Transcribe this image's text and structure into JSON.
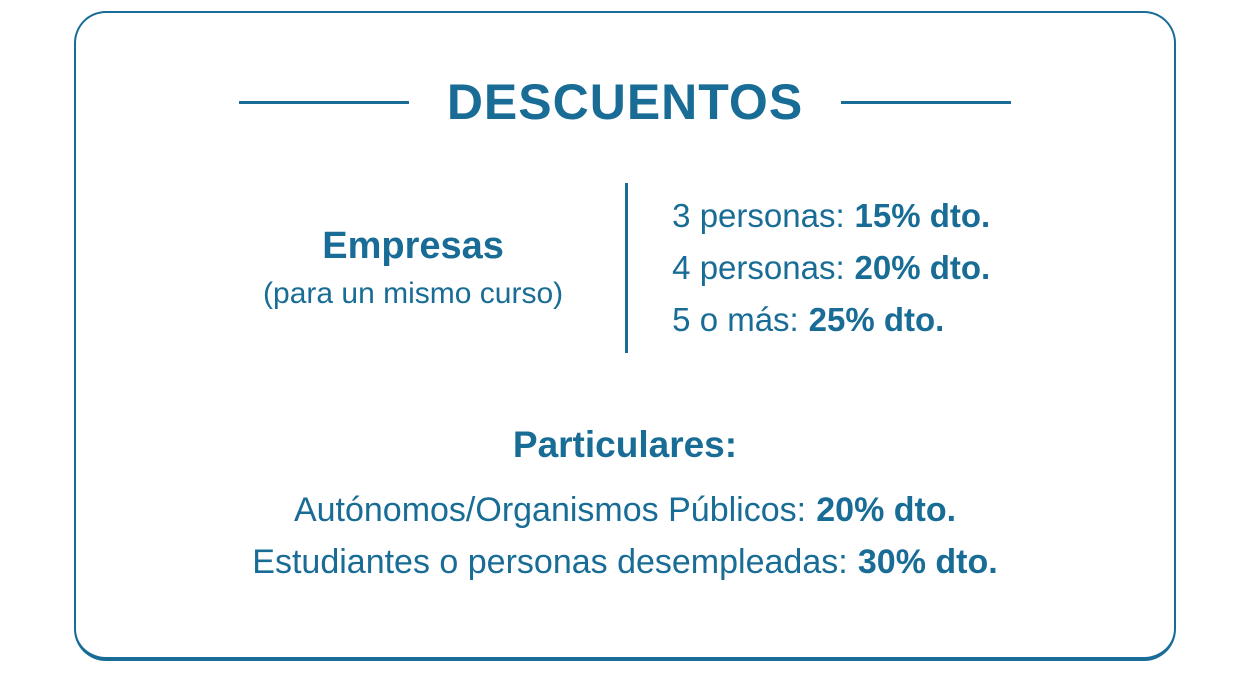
{
  "colors": {
    "accent": "#186c95"
  },
  "card": {
    "title": "DESCUENTOS",
    "empresas": {
      "heading": "Empresas",
      "subheading": "(para un mismo curso)",
      "tiers": [
        {
          "label": "3 personas:",
          "value": "15% dto."
        },
        {
          "label": "4 personas:",
          "value": "20% dto."
        },
        {
          "label": "5 o más:",
          "value": "25% dto."
        }
      ]
    },
    "particulares": {
      "heading": "Particulares:",
      "items": [
        {
          "label": "Autónomos/Organismos Públicos:",
          "value": "20% dto."
        },
        {
          "label": "Estudiantes o personas desempleadas:",
          "value": "30% dto."
        }
      ]
    }
  }
}
